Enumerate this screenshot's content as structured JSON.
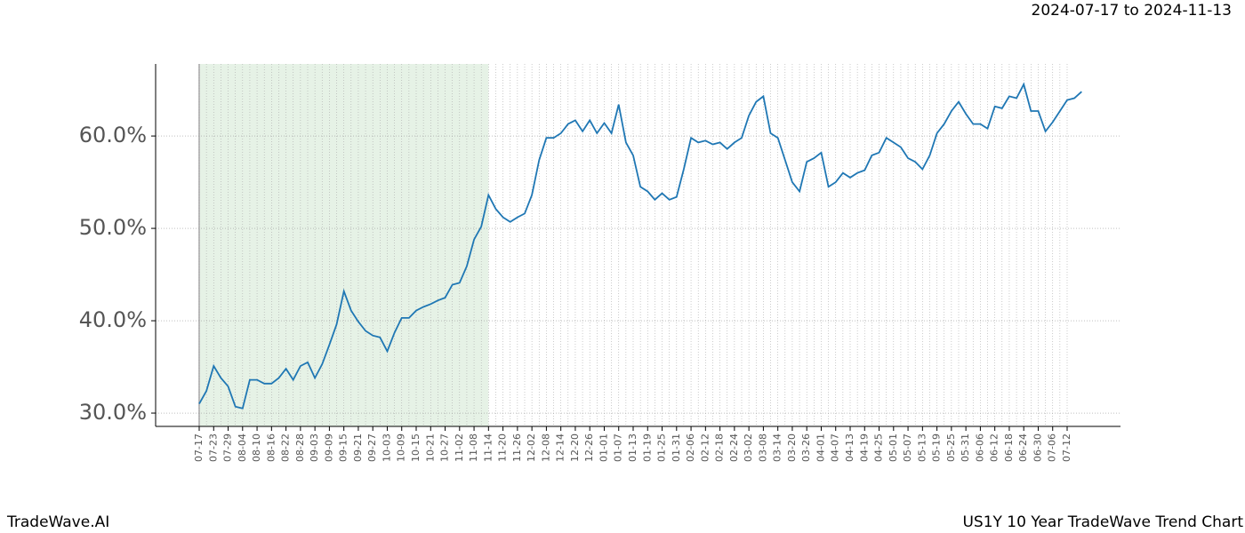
{
  "chart_data": {
    "type": "line",
    "title": "US1Y 10 Year TradeWave Trend Chart",
    "subtitle": "2024-07-17 to 2024-11-13",
    "brand": "TradeWave.AI",
    "categories": [
      "07-17",
      null,
      "07-23",
      null,
      "07-29",
      null,
      "08-04",
      null,
      "08-10",
      null,
      "08-16",
      null,
      "08-22",
      null,
      "08-28",
      null,
      "09-03",
      null,
      "09-09",
      null,
      "09-15",
      null,
      "09-21",
      null,
      "09-27",
      null,
      "10-03",
      null,
      "10-09",
      null,
      "10-15",
      null,
      "10-21",
      null,
      "10-27",
      null,
      "11-02",
      null,
      "11-08",
      null,
      "11-14",
      null,
      "11-20",
      null,
      "11-26",
      null,
      "12-02",
      null,
      "12-08",
      null,
      "12-14",
      null,
      "12-20",
      null,
      "12-26",
      null,
      "01-01",
      null,
      "01-07",
      null,
      "01-13",
      null,
      "01-19",
      null,
      "01-25",
      null,
      "01-31",
      null,
      "02-06",
      null,
      "02-12",
      null,
      "02-18",
      null,
      "02-24",
      null,
      "03-02",
      null,
      "03-08",
      null,
      "03-14",
      null,
      "03-20",
      null,
      "03-26",
      null,
      "04-01",
      null,
      "04-07",
      null,
      "04-13",
      null,
      "04-19",
      null,
      "04-25",
      null,
      "05-01",
      null,
      "05-07",
      null,
      "05-13",
      null,
      "05-19",
      null,
      "05-25",
      null,
      "05-31",
      null,
      "06-06",
      null,
      "06-12",
      null,
      "06-18",
      null,
      "06-24",
      null,
      "06-30",
      null,
      "07-06",
      null,
      "07-12",
      null,
      null
    ],
    "series": [
      {
        "name": "US1Y",
        "color": "#1f77b4",
        "values": [
          31.0,
          32.4,
          35.1,
          33.8,
          32.9,
          30.7,
          30.5,
          33.6,
          33.6,
          33.2,
          33.2,
          33.8,
          34.8,
          33.6,
          35.1,
          35.5,
          33.8,
          35.3,
          37.4,
          39.6,
          43.2,
          41.1,
          39.9,
          38.9,
          38.4,
          38.2,
          36.7,
          38.7,
          40.3,
          40.3,
          41.1,
          41.5,
          41.8,
          42.2,
          42.5,
          43.9,
          44.1,
          45.9,
          48.8,
          50.2,
          53.6,
          52.1,
          51.2,
          50.7,
          51.2,
          51.6,
          53.6,
          57.4,
          59.8,
          59.8,
          60.3,
          61.3,
          61.7,
          60.5,
          61.7,
          60.3,
          61.4,
          60.3,
          63.4,
          59.3,
          57.9,
          54.5,
          54.0,
          53.1,
          53.8,
          53.1,
          53.4,
          56.4,
          59.8,
          59.3,
          59.5,
          59.1,
          59.3,
          58.6,
          59.3,
          59.8,
          62.2,
          63.7,
          64.3,
          60.3,
          59.8,
          57.4,
          55.0,
          54.0,
          57.2,
          57.6,
          58.2,
          54.5,
          55.0,
          56.0,
          55.5,
          56.0,
          56.3,
          57.9,
          58.2,
          59.8,
          59.3,
          58.8,
          57.6,
          57.2,
          56.4,
          57.9,
          60.3,
          61.3,
          62.7,
          63.7,
          62.4,
          61.3,
          61.3,
          60.8,
          63.2,
          63.0,
          64.3,
          64.1,
          65.6,
          62.7,
          62.7,
          60.5,
          61.5,
          62.7,
          63.9,
          64.1,
          64.8
        ]
      }
    ],
    "highlight": [
      0,
      40
    ],
    "highlight_color": "#e6f2e6",
    "ylim": [
      28.56,
      67.8
    ],
    "yticks": [
      {
        "value": 30,
        "label": "30.0%"
      },
      {
        "value": 40,
        "label": "40.0%"
      },
      {
        "value": 50,
        "label": "50.0%"
      },
      {
        "value": 60,
        "label": "60.0%"
      }
    ],
    "grid": true
  }
}
